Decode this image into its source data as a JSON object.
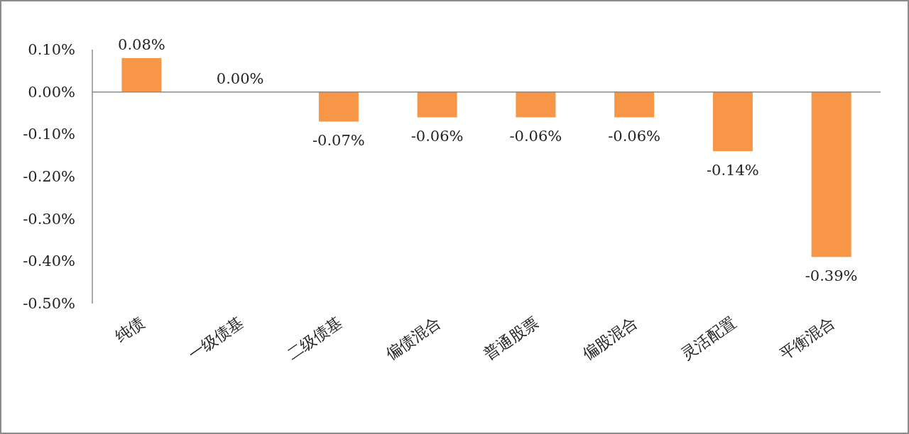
{
  "chart_data": {
    "type": "bar",
    "categories": [
      "纯债",
      "一级债基",
      "二级债基",
      "偏债混合",
      "普通股票",
      "偏股混合",
      "灵活配置",
      "平衡混合"
    ],
    "values": [
      0.08,
      0.0,
      -0.07,
      -0.06,
      -0.06,
      -0.06,
      -0.14,
      -0.39
    ],
    "value_labels": [
      "0.08%",
      "0.00%",
      "-0.07%",
      "-0.06%",
      "-0.06%",
      "-0.06%",
      "-0.14%",
      "-0.39%"
    ],
    "color": "#f79646",
    "ylim": [
      -0.5,
      0.1
    ],
    "yticks": [
      {
        "value": 0.1,
        "label": "0.10%"
      },
      {
        "value": 0.0,
        "label": "0.00%"
      },
      {
        "value": -0.1,
        "label": "-0.10%"
      },
      {
        "value": -0.2,
        "label": "-0.20%"
      },
      {
        "value": -0.3,
        "label": "-0.30%"
      },
      {
        "value": -0.4,
        "label": "-0.40%"
      },
      {
        "value": -0.5,
        "label": "-0.50%"
      }
    ]
  }
}
